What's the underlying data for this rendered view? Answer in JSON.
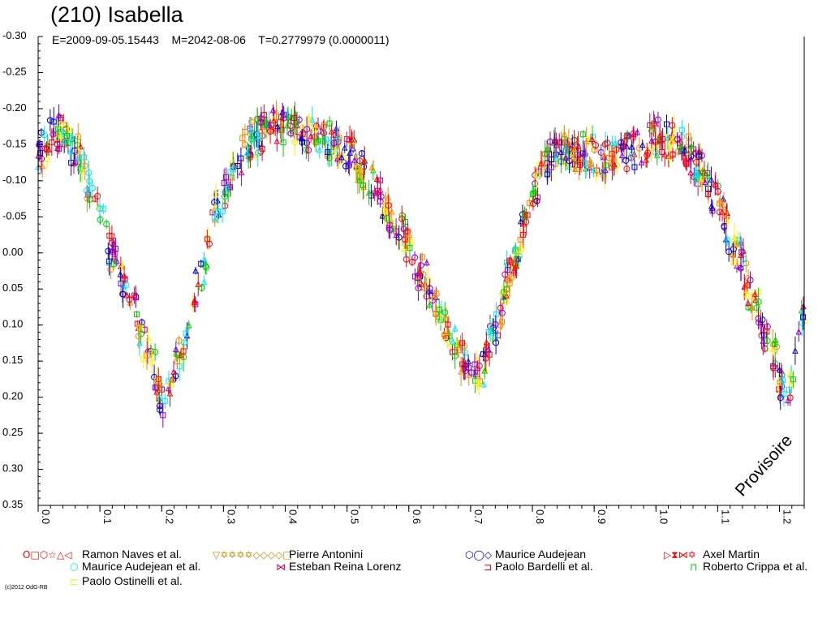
{
  "chart_data": {
    "type": "scatter",
    "title": "(210) Isabella",
    "subtitle": "E=2009-09-05.15443    M=2042-08-06    T=0.2779979 (0.0000011)",
    "xlabel": "",
    "ylabel": "",
    "xlim": [
      0.0,
      1.24
    ],
    "ylim": [
      -0.3,
      0.35
    ],
    "y_inverted": true,
    "x_ticks": [
      "0.0",
      "0.1",
      "0.2",
      "0.3",
      "0.4",
      "0.5",
      "0.6",
      "0.7",
      "0.8",
      "0.9",
      "1.0",
      "1.1",
      "1.2"
    ],
    "y_ticks": [
      "-0.30",
      "-0.25",
      "-0.20",
      "-0.15",
      "-0.10",
      "-0.05",
      "0.00",
      "0.05",
      "0.10",
      "0.15",
      "0.20",
      "0.25",
      "0.30",
      "0.35"
    ],
    "grid": false,
    "legend_position": "bottom",
    "watermark": "Provisoire",
    "curve": {
      "x": [
        0.0,
        0.03,
        0.06,
        0.09,
        0.12,
        0.15,
        0.18,
        0.205,
        0.23,
        0.26,
        0.29,
        0.32,
        0.35,
        0.38,
        0.42,
        0.46,
        0.5,
        0.54,
        0.58,
        0.62,
        0.66,
        0.69,
        0.715,
        0.74,
        0.77,
        0.8,
        0.84,
        0.88,
        0.92,
        0.96,
        1.0,
        1.04,
        1.07,
        1.1,
        1.13,
        1.16,
        1.19,
        1.21,
        1.23,
        1.24
      ],
      "y": [
        -0.14,
        -0.17,
        -0.14,
        -0.08,
        0.0,
        0.07,
        0.14,
        0.21,
        0.14,
        0.04,
        -0.06,
        -0.13,
        -0.16,
        -0.18,
        -0.17,
        -0.16,
        -0.14,
        -0.1,
        -0.04,
        0.03,
        0.1,
        0.15,
        0.17,
        0.1,
        0.01,
        -0.09,
        -0.14,
        -0.14,
        -0.13,
        -0.14,
        -0.16,
        -0.15,
        -0.12,
        -0.07,
        0.0,
        0.07,
        0.14,
        0.2,
        0.13,
        0.07
      ]
    },
    "series": [
      {
        "name": "Ramon Naves et al.",
        "color": "#ff0000",
        "markers": "O□⬡☆△◁"
      },
      {
        "name": "Pierre Antonini",
        "color": "#cc8800",
        "markers": "▽✡✡✡✡◇◇◇◇□"
      },
      {
        "name": "Maurice Audejean",
        "color": "#0000cc",
        "markers": "⬡◯◇"
      },
      {
        "name": "Axel Martin",
        "color": "#ff0000",
        "markers": "▷⧗⋈✡"
      },
      {
        "name": "Maurice Audejean et al.",
        "color": "#00e5ff",
        "markers": "⬡"
      },
      {
        "name": "Esteban Reina Lorenz",
        "color": "#e0004a",
        "markers": "⋈"
      },
      {
        "name": "Paolo Bardelli et al.",
        "color": "#e00000",
        "markers": "⊐"
      },
      {
        "name": "Roberto Crippa et al.",
        "color": "#00cc00",
        "markers": "⊓"
      },
      {
        "name": "Paolo Ostinelli et al.",
        "color": "#ffee00",
        "markers": "⊏"
      }
    ],
    "point_colors": [
      "#ff0000",
      "#ffee00",
      "#00e5ff",
      "#0000cc",
      "#00cc00",
      "#8800cc",
      "#ff8800",
      "#e0004a"
    ]
  },
  "credit": "(c)2012 OdG-RB"
}
